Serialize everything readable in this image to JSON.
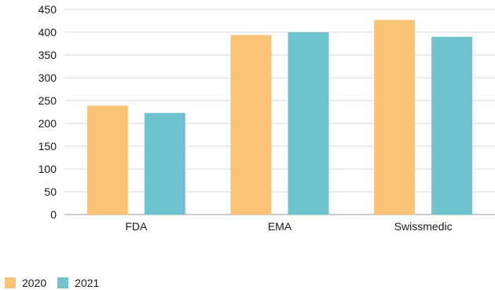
{
  "chart_data": {
    "type": "bar",
    "title": "",
    "xlabel": "",
    "ylabel": "",
    "categories": [
      "FDA",
      "EMA",
      "Swissmedic"
    ],
    "ylim": [
      0,
      450
    ],
    "yticks": [
      0,
      50,
      100,
      150,
      200,
      250,
      300,
      350,
      400,
      450
    ],
    "grid": true,
    "legend_position": "bottom-left",
    "series": [
      {
        "name": "2020",
        "color": "#F9C477",
        "values": [
          239,
          394,
          427
        ]
      },
      {
        "name": "2021",
        "color": "#6FC4CF",
        "values": [
          223,
          400,
          390
        ]
      }
    ]
  }
}
